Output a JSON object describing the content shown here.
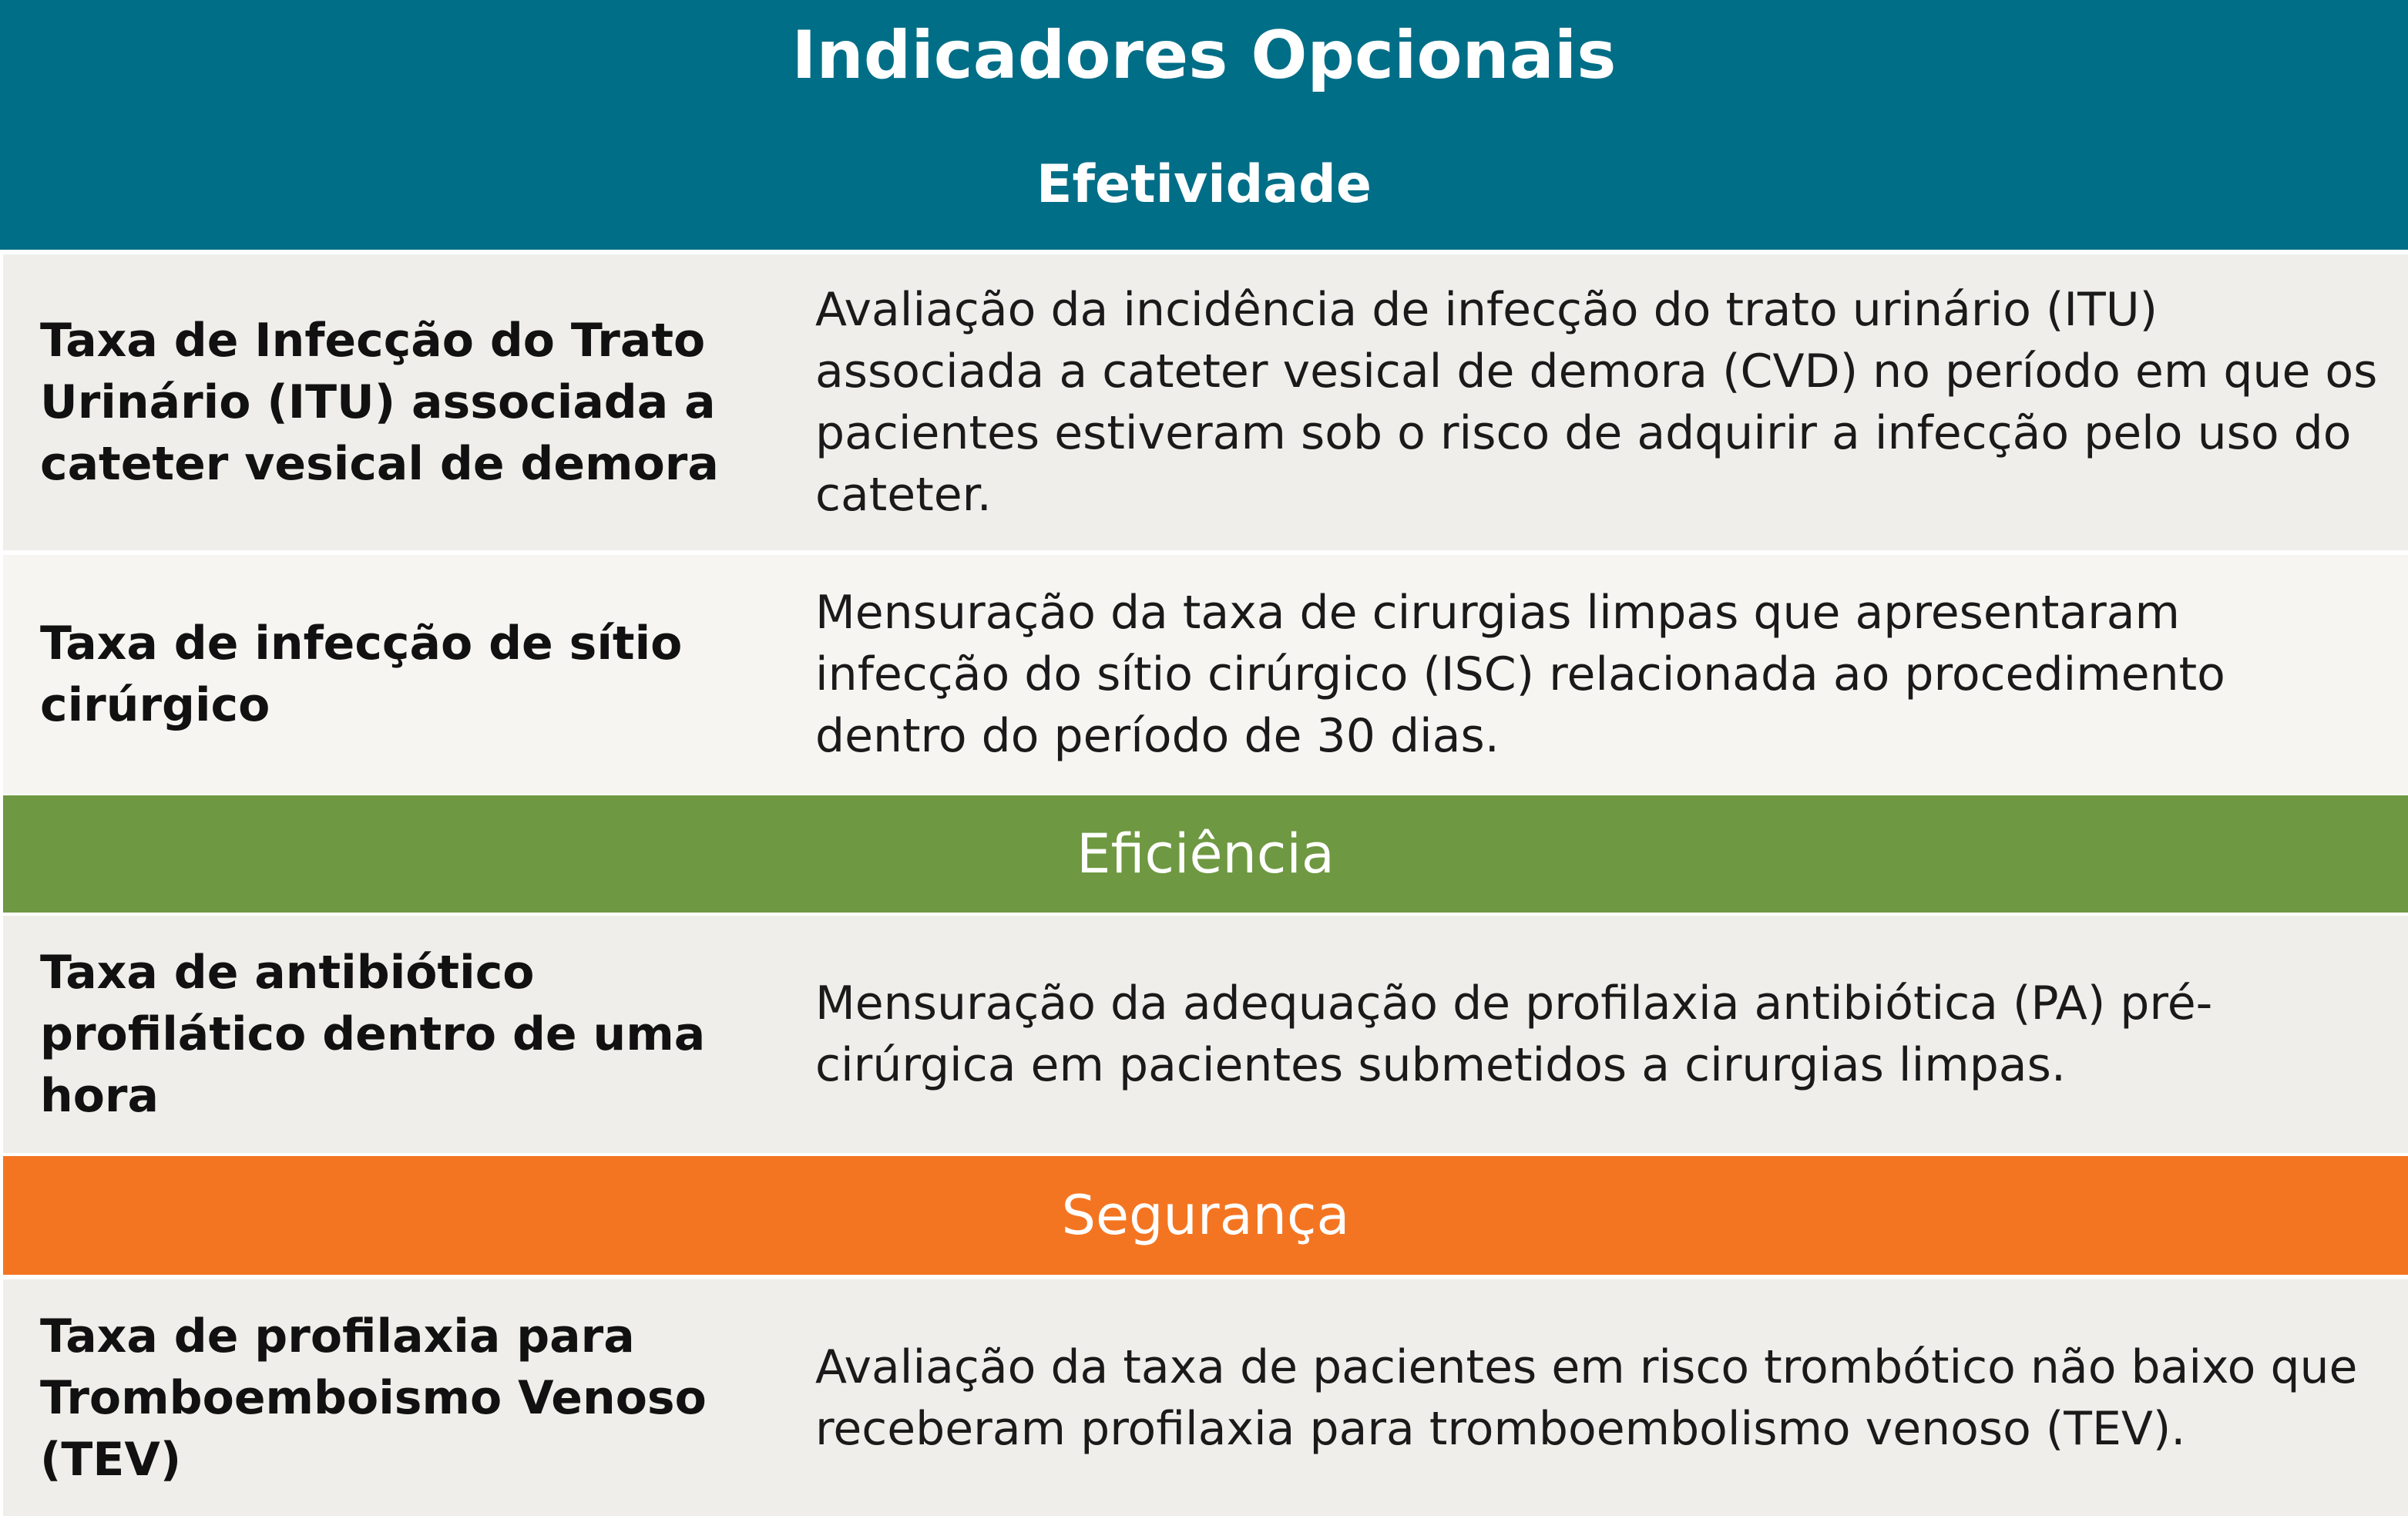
{
  "header": {
    "title": "Indicadores Opcionais",
    "subtitle": "Efetividade"
  },
  "colors": {
    "efetividade": "#006e87",
    "eficiencia": "#6e9841",
    "seguranca": "#f47521",
    "row_bg": "#f0eeea",
    "row_bg_alt": "#f6f5f2"
  },
  "sections": {
    "efetividade": {
      "rows": [
        {
          "indicator": "Taxa de Infecção do Trato Urinário (ITU) associada a cateter vesical de demora",
          "description": "Avaliação da incidência de infecção do trato urinário (ITU) associada a cateter vesical de demora (CVD) no período em que os pacientes estiveram sob o risco de adquirir a infecção pelo uso do cateter."
        },
        {
          "indicator": "Taxa de infecção de sítio cirúrgico",
          "description": "Mensuração da taxa de cirurgias limpas que apresentaram infecção do sítio cirúrgico (ISC) relacionada ao procedimento dentro do período de 30 dias."
        }
      ]
    },
    "eficiencia": {
      "label": "Eficiência",
      "rows": [
        {
          "indicator": "Taxa de antibiótico profilático dentro de uma hora",
          "description": "Mensuração da adequação de profilaxia antibiótica (PA) pré-cirúrgica em pacientes submetidos a cirurgias limpas."
        }
      ]
    },
    "seguranca": {
      "label": "Segurança",
      "rows": [
        {
          "indicator": "Taxa de profilaxia para Tromboemboismo Venoso (TEV)",
          "description": "Avaliação da taxa de pacientes em risco trombótico não baixo que receberam profilaxia para tromboembolismo venoso (TEV)."
        }
      ]
    }
  }
}
